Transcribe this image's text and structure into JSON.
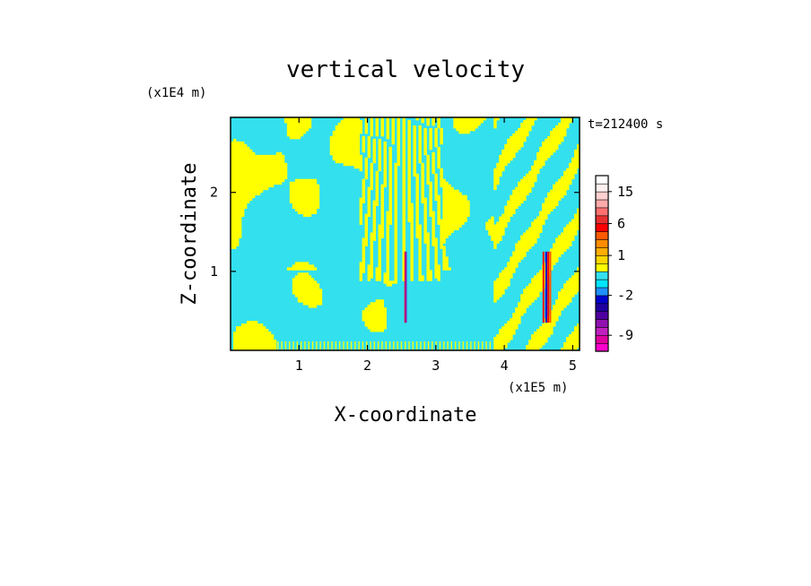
{
  "chart_data": {
    "type": "heatmap",
    "title": "vertical velocity",
    "xlabel": "X-coordinate",
    "ylabel": "Z-coordinate",
    "x_unit": "(x1E5 m)",
    "y_unit": "(x1E4 m)",
    "time_label": "t=212400 s",
    "xlim": [
      0,
      5.1
    ],
    "ylim": [
      0,
      2.95
    ],
    "x_ticks": [
      1,
      2,
      3,
      4,
      5
    ],
    "y_ticks": [
      1,
      2
    ],
    "colorbar": {
      "levels": [
        -12,
        -10.5,
        -9,
        -7.5,
        -6,
        -4.5,
        -3,
        -2,
        -1,
        -0.5,
        0,
        0.5,
        1,
        1.5,
        2,
        4,
        6,
        8,
        10,
        12.5,
        15,
        17.5,
        20
      ],
      "colors": [
        "#ff00cc",
        "#e0009f",
        "#c020c0",
        "#9010b0",
        "#5000a0",
        "#2000a0",
        "#0000cc",
        "#1e90ff",
        "#00e5ff",
        "#33e0ee",
        "#ffff00",
        "#ffd700",
        "#ffae00",
        "#ff8c00",
        "#ff5a00",
        "#ff0000",
        "#e83030",
        "#ff7070",
        "#ffaaaa",
        "#ffd0d0",
        "#fff0f0",
        "#ffffff"
      ],
      "tick_labels": [
        "15",
        "6",
        "1",
        "-2",
        "-9"
      ],
      "tick_values": [
        15,
        6,
        1,
        -2,
        -9
      ]
    },
    "field_colors": {
      "positive": "#ffff00",
      "negative": "#33e0ee"
    },
    "grid": false,
    "legend": "colorbar-right"
  }
}
